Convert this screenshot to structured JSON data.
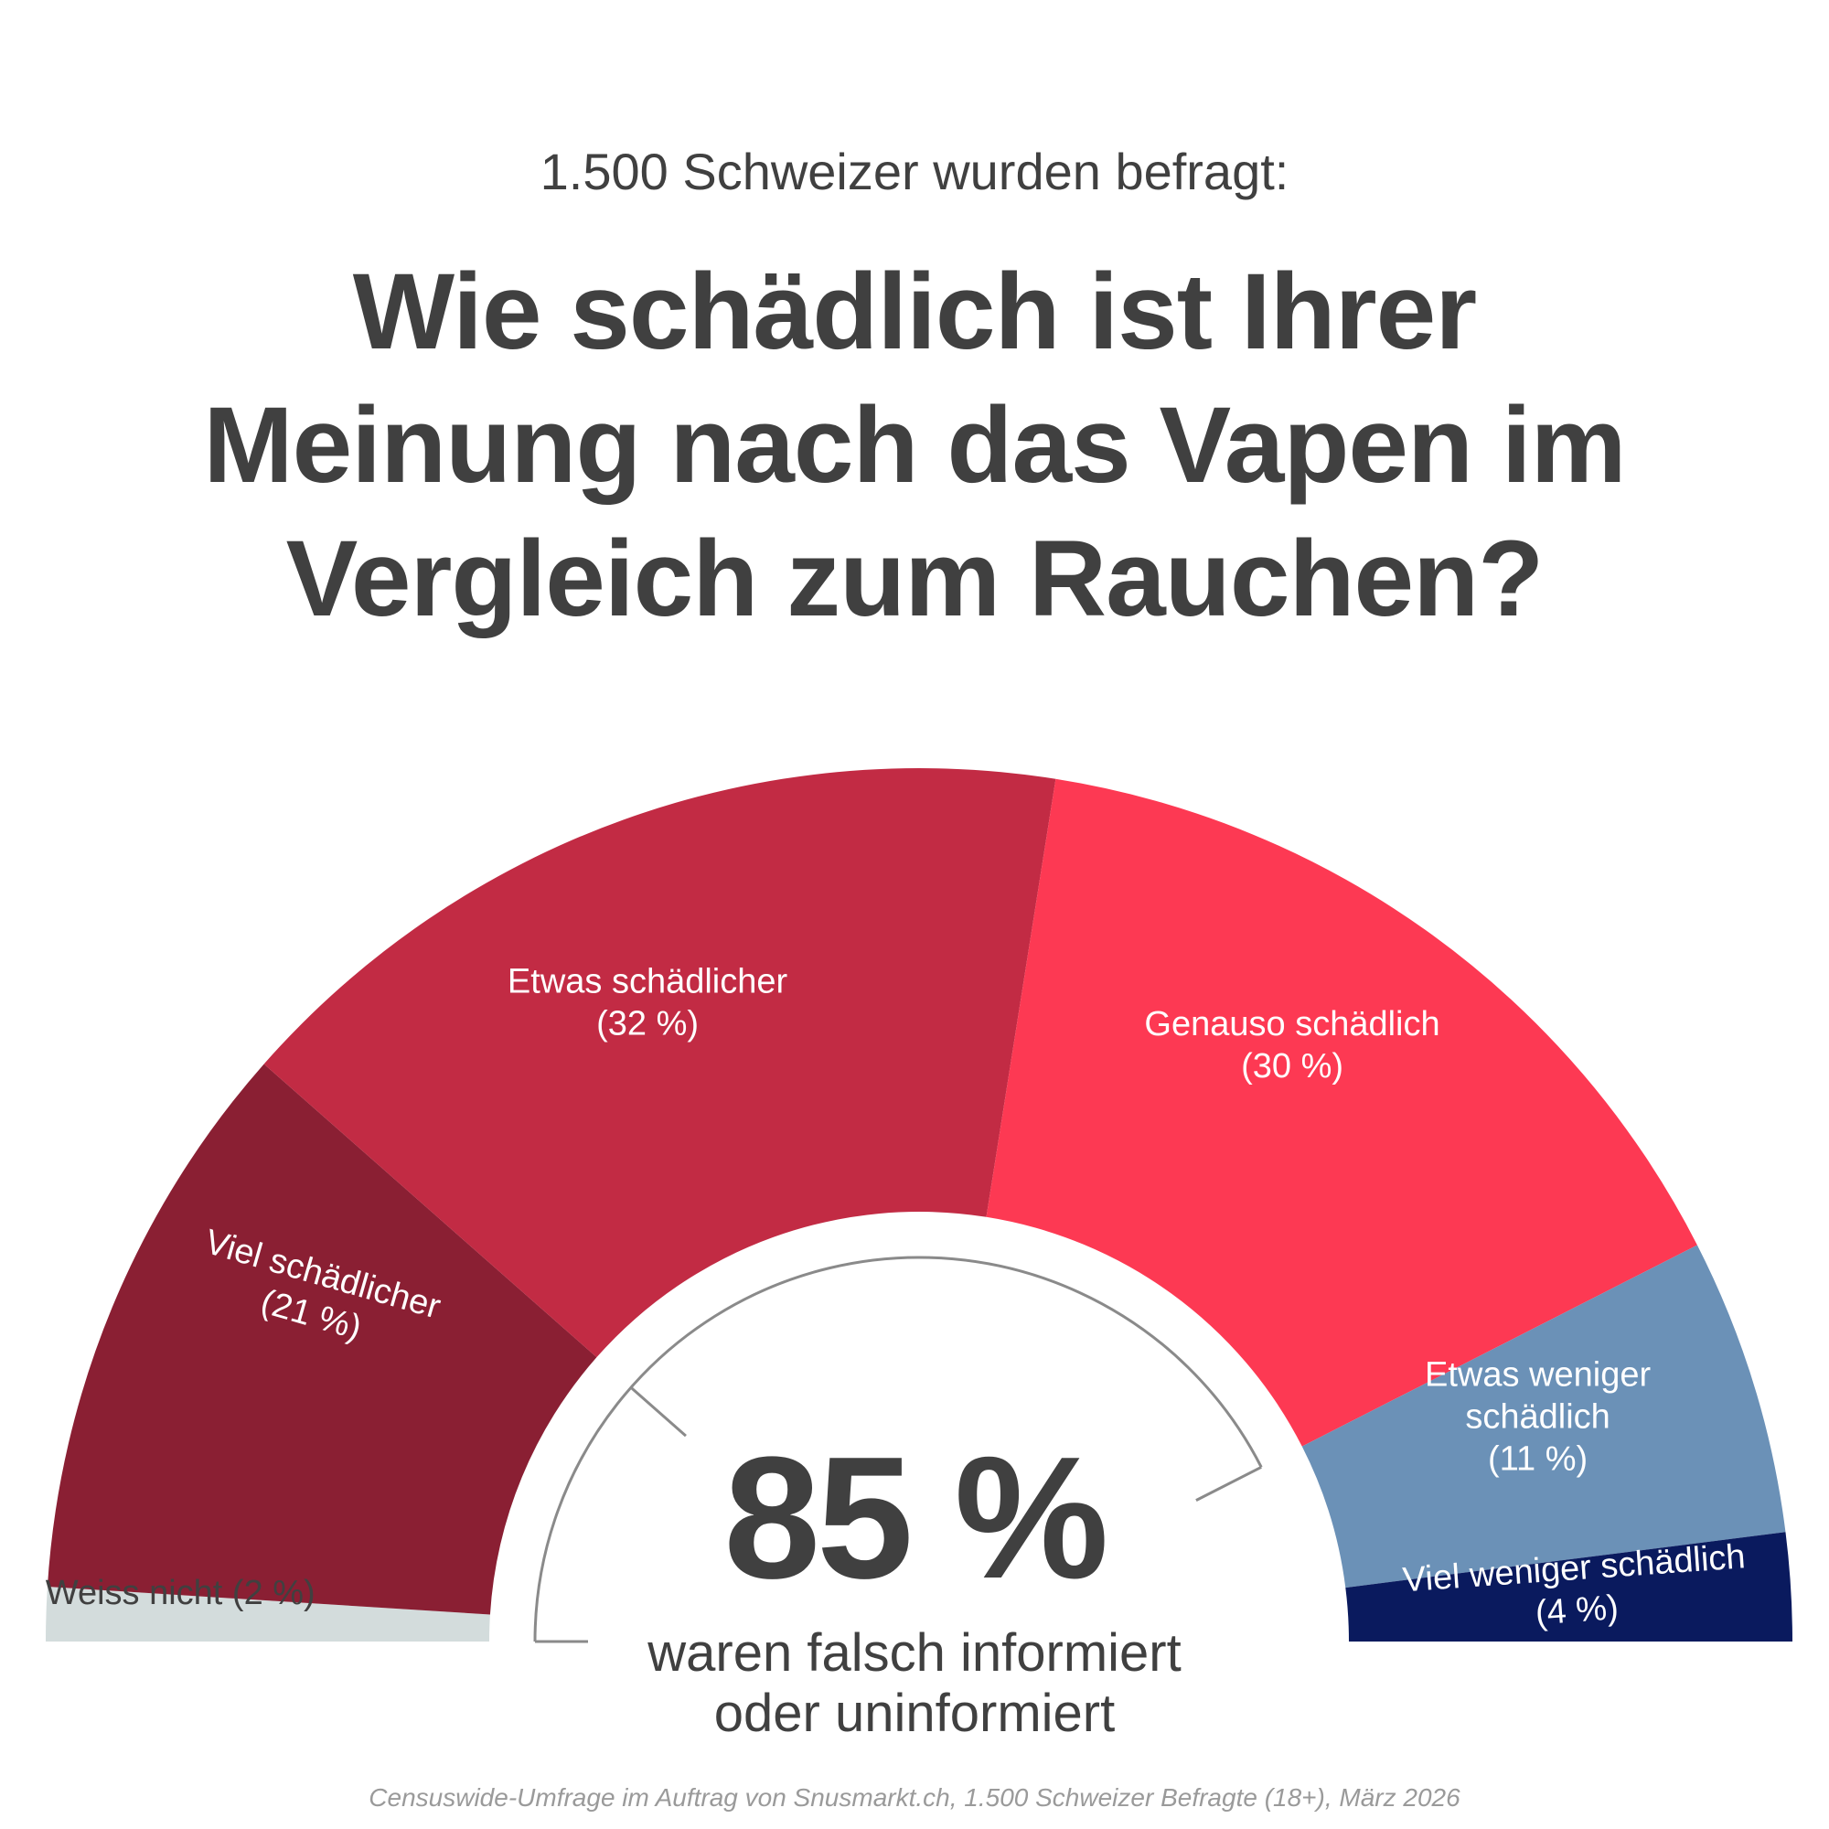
{
  "header": {
    "subtitle": "1.500 Schweizer wurden befragt:",
    "title_lines": [
      "Wie schädlich ist Ihrer",
      "Meinung nach das Vapen im",
      "Vergleich zum Rauchen?"
    ]
  },
  "chart_data": {
    "type": "pie",
    "variant": "half-donut",
    "title": "Wie schädlich ist Ihrer Meinung nach das Vapen im Vergleich zum Rauchen?",
    "unit": "%",
    "slices": [
      {
        "key": "weiss",
        "label": "Weiss nicht (2 %)",
        "label_lines": [
          "Weiss nicht (2 %)"
        ],
        "value": 2,
        "color": "#d3dcdc"
      },
      {
        "key": "viel",
        "label": "Viel schädlicher (21 %)",
        "label_lines": [
          "Viel schädlicher",
          "(21 %)"
        ],
        "value": 21,
        "color": "#8a1f33"
      },
      {
        "key": "etwas",
        "label": "Etwas schädlicher (32 %)",
        "label_lines": [
          "Etwas schädlicher",
          "(32 %)"
        ],
        "value": 32,
        "color": "#c22b44"
      },
      {
        "key": "genauso",
        "label": "Genauso schädlich (30 %)",
        "label_lines": [
          "Genauso schädlich",
          "(30 %)"
        ],
        "value": 30,
        "color": "#fd3953"
      },
      {
        "key": "etwaswen",
        "label": "Etwas weniger schädlich (11 %)",
        "label_lines": [
          "Etwas weniger",
          "schädlich",
          "(11 %)"
        ],
        "value": 11,
        "color": "#6b91b7"
      },
      {
        "key": "vielwen",
        "label": "Viel weniger schädlich (4 %)",
        "label_lines": [
          "Viel weniger schädlich",
          "(4 %)"
        ],
        "value": 4,
        "color": "#0a1a5e"
      }
    ],
    "gauge_tick_values": [
      23,
      85
    ],
    "highlight": {
      "value": "85 %",
      "caption_lines": [
        "waren falsch informiert",
        "oder uninformiert"
      ]
    }
  },
  "footer": {
    "source": "Censuswide-Umfrage im Auftrag von Snusmarkt.ch, 1.500 Schweizer Befragte (18+), März 2026"
  }
}
